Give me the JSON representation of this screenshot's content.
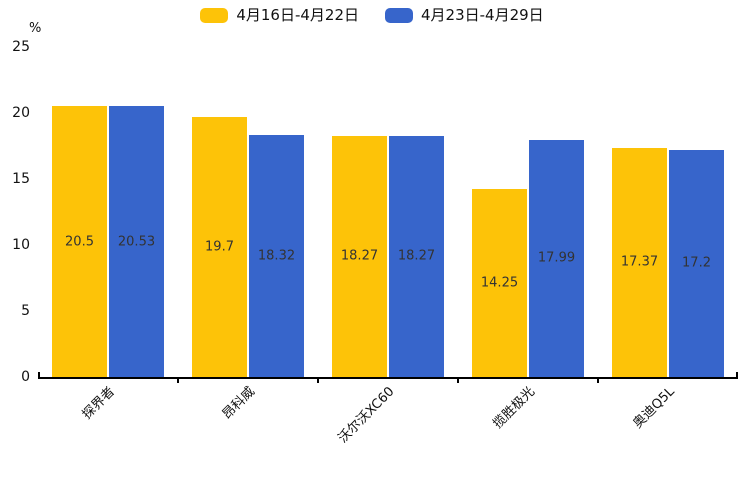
{
  "chart_data": {
    "type": "bar",
    "categories": [
      "探界者",
      "昂科威",
      "沃尔沃XC60",
      "揽胜极光",
      "奥迪Q5L"
    ],
    "series": [
      {
        "name": "4月16日-4月22日",
        "color": "#FDC308",
        "values": [
          20.5,
          19.7,
          18.27,
          14.25,
          17.37
        ]
      },
      {
        "name": "4月23日-4月29日",
        "color": "#3765CB",
        "values": [
          20.53,
          18.32,
          18.27,
          17.99,
          17.2
        ]
      }
    ],
    "title": "",
    "xlabel": "",
    "ylabel": "%",
    "yticks": [
      0,
      5,
      10,
      15,
      20,
      25
    ],
    "ylim": [
      0,
      25
    ],
    "grid": false,
    "legend_position": "top",
    "value_label_position": "inside-center",
    "axis_color": "#000000",
    "value_label_color": "#333333"
  }
}
